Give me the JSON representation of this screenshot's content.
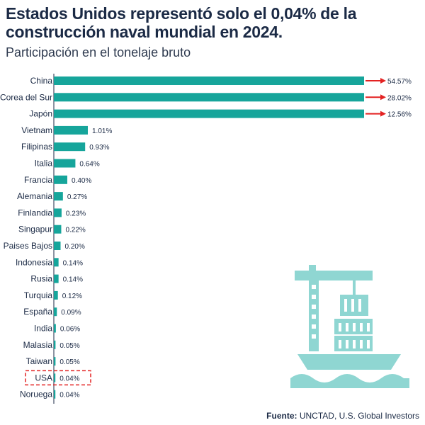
{
  "title": "Estados Unidos representó solo el 0,04% de la construcción naval mundial en 2024.",
  "subtitle": "Participación en el tonelaje bruto",
  "source": {
    "label": "Fuente:",
    "text": "UNCTAD, U.S. Global Investors"
  },
  "colors": {
    "bar": "#16a59b",
    "arrow": "#e32222",
    "highlight": "#e32222",
    "ship": "#8fd6d2",
    "text": "#1b2a45"
  },
  "icons": [
    "ship-crane-icon"
  ],
  "chart_data": {
    "type": "bar",
    "orientation": "horizontal",
    "categories": [
      "China",
      "Corea del Sur",
      "Japón",
      "Vietnam",
      "Filipinas",
      "Italia",
      "Francia",
      "Alemania",
      "Finlandia",
      "Singapur",
      "Paises Bajos",
      "Indonesia",
      "Rusia",
      "Turquia",
      "España",
      "India",
      "Malasia",
      "Taiwan",
      "USA",
      "Noruega"
    ],
    "values": [
      54.57,
      28.02,
      12.56,
      1.01,
      0.93,
      0.64,
      0.4,
      0.27,
      0.23,
      0.22,
      0.2,
      0.14,
      0.14,
      0.12,
      0.09,
      0.06,
      0.05,
      0.05,
      0.04,
      0.04
    ],
    "value_labels": [
      "54.57%",
      "28.02%",
      "12.56%",
      "1.01%",
      "0.93%",
      "0.64%",
      "0.40%",
      "0.27%",
      "0.23%",
      "0.22%",
      "0.20%",
      "0.14%",
      "0.14%",
      "0.12%",
      "0.09%",
      "0.06%",
      "0.05%",
      "0.05%",
      "0.04%",
      "0.04%"
    ],
    "truncated_categories": [
      "China",
      "Corea del Sur",
      "Japón"
    ],
    "highlighted_category": "USA",
    "visual_max": 8.5,
    "grid": false,
    "legend": "none"
  }
}
